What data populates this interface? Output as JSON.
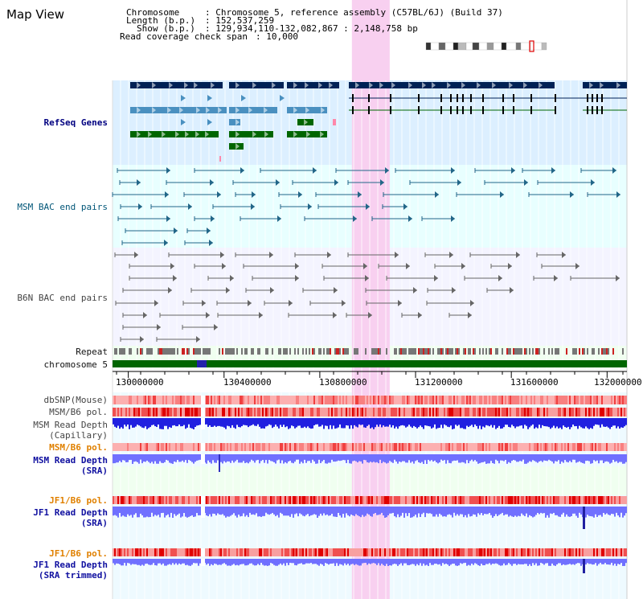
{
  "page": {
    "title": "Map View"
  },
  "info": {
    "chromosome_label": "Chromosome",
    "chromosome_value": ": Chromosome 5, reference assembly (C57BL/6J) (Build 37)",
    "length_label": "Length (b.p.)",
    "length_value": ": 152,537,259",
    "show_label": "Show (b.p.)",
    "show_value": ": 129,934,110-132,082,867 : 2,148,758 bp",
    "span_label": "Read coverage check span",
    "span_value": ": 10,000"
  },
  "tracks": {
    "refseq": "RefSeq Genes",
    "msm_bac": "MSM BAC end pairs",
    "b6n_bac": "B6N BAC end pairs",
    "repeat": "Repeat",
    "chromosome": "chromosome 5",
    "dbsnp": "dbSNP(Mouse)",
    "msm_b6_pol": "MSM/B6 pol.",
    "msm_depth_cap_1": "MSM Read Depth",
    "msm_depth_cap_2": "(Capillary)",
    "msm_b6_pol_2": "MSM/B6 pol.",
    "msm_depth_sra_1": "MSM Read Depth",
    "msm_depth_sra_2": "(SRA)",
    "jf1_b6_pol": "JF1/B6 pol.",
    "jf1_depth_sra_1": "JF1 Read Depth",
    "jf1_depth_sra_2": "(SRA)",
    "jf1_b6_pol_2": "JF1/B6 pol.",
    "jf1_depth_trim_1": "JF1 Read Depth",
    "jf1_depth_trim_2": "(SRA trimmed)"
  },
  "axis": {
    "ticks": [
      "130000000",
      "130400000",
      "130800000",
      "131200000",
      "131600000",
      "132000000"
    ],
    "tick_values": [
      130000000,
      130400000,
      130800000,
      131200000,
      131600000,
      132000000
    ],
    "view_start": 129934110,
    "view_end": 132082867
  },
  "highlight_region": {
    "start": 130934000,
    "end": 131092000
  },
  "colors": {
    "refseq_bg": "#dcefff",
    "msm_bg": "#e8ffff",
    "highlight": "#f8d0f0",
    "gene_navy": "#002255",
    "gene_blue": "#4a90c0",
    "gene_green": "#006600",
    "chromosome_bar": "#006600",
    "depth_blue": "#2020e0",
    "depth_light": "#7070ff"
  }
}
